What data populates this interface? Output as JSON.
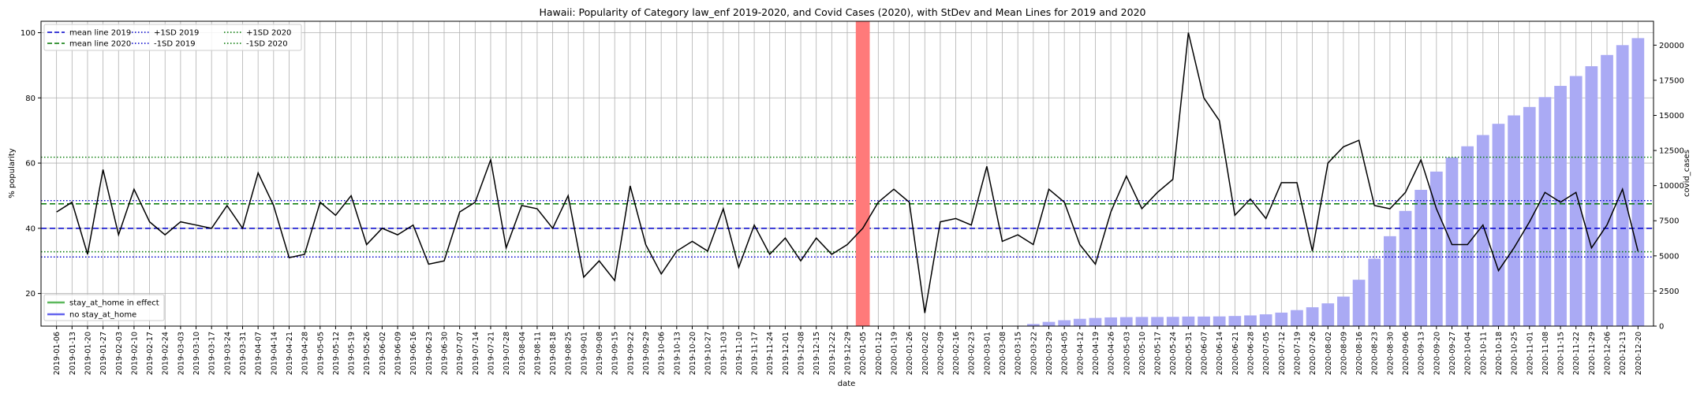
{
  "chart_data": {
    "type": "line",
    "title": "Hawaii: Popularity of Category law_enf 2019-2020, and Covid Cases (2020), with StDev and Mean Lines for 2019 and 2020",
    "xlabel": "date",
    "ylabel": "% popularity",
    "y2label": "covid_cases",
    "ylim": [
      10,
      103.5
    ],
    "y_ticks": [
      20,
      40,
      60,
      80,
      100
    ],
    "y2lim": [
      0,
      21700
    ],
    "y2_ticks": [
      0,
      2500,
      5000,
      7500,
      10000,
      12500,
      15000,
      17500,
      20000
    ],
    "grid": true,
    "dates": [
      "2019-01-06",
      "2019-01-13",
      "2019-01-20",
      "2019-01-27",
      "2019-02-03",
      "2019-02-10",
      "2019-02-17",
      "2019-02-24",
      "2019-03-03",
      "2019-03-10",
      "2019-03-17",
      "2019-03-24",
      "2019-03-31",
      "2019-04-07",
      "2019-04-14",
      "2019-04-21",
      "2019-04-28",
      "2019-05-05",
      "2019-05-12",
      "2019-05-19",
      "2019-05-26",
      "2019-06-02",
      "2019-06-09",
      "2019-06-16",
      "2019-06-23",
      "2019-06-30",
      "2019-07-07",
      "2019-07-14",
      "2019-07-21",
      "2019-07-28",
      "2019-08-04",
      "2019-08-11",
      "2019-08-18",
      "2019-08-25",
      "2019-09-01",
      "2019-09-08",
      "2019-09-15",
      "2019-09-22",
      "2019-09-29",
      "2019-10-06",
      "2019-10-13",
      "2019-10-20",
      "2019-10-27",
      "2019-11-03",
      "2019-11-10",
      "2019-11-17",
      "2019-11-24",
      "2019-12-01",
      "2019-12-08",
      "2019-12-15",
      "2019-12-22",
      "2019-12-29",
      "2020-01-05",
      "2020-01-12",
      "2020-01-19",
      "2020-01-26",
      "2020-02-02",
      "2020-02-09",
      "2020-02-16",
      "2020-02-23",
      "2020-03-01",
      "2020-03-08",
      "2020-03-15",
      "2020-03-22",
      "2020-03-29",
      "2020-04-05",
      "2020-04-12",
      "2020-04-19",
      "2020-04-26",
      "2020-05-03",
      "2020-05-10",
      "2020-05-17",
      "2020-05-24",
      "2020-05-31",
      "2020-06-07",
      "2020-06-14",
      "2020-06-21",
      "2020-06-28",
      "2020-07-05",
      "2020-07-12",
      "2020-07-19",
      "2020-07-26",
      "2020-08-02",
      "2020-08-09",
      "2020-08-16",
      "2020-08-23",
      "2020-08-30",
      "2020-09-06",
      "2020-09-13",
      "2020-09-20",
      "2020-09-27",
      "2020-10-04",
      "2020-10-11",
      "2020-10-18",
      "2020-10-25",
      "2020-11-01",
      "2020-11-08",
      "2020-11-15",
      "2020-11-22",
      "2020-11-29",
      "2020-12-06",
      "2020-12-13",
      "2020-12-20"
    ],
    "tick_labels": [
      "2019-01-06",
      "2019-01-13",
      "2019-01-20",
      "2019-01-27",
      "2019-02-03",
      "2019-02-10",
      "2019-02-17",
      "2019-02-24",
      "2019-03-03",
      "2019-03-10",
      "2019-03-17",
      "2019-03-24",
      "2019-03-31",
      "2019-04-07",
      "2019-04-14",
      "2019-04-21",
      "2019-04-28",
      "2019-05-05",
      "2019-05-12",
      "2019-05-19",
      "2019-05-26",
      "2019-06-02",
      "2019-06-09",
      "2019-06-16",
      "2019-06-23",
      "2019-06-30",
      "2019-07-07",
      "2019-07-14",
      "2019-07-21",
      "2019-07-28",
      "2019-08-04",
      "2019-08-11",
      "2019-08-18",
      "2019-08-25",
      "2019-09-01",
      "2019-09-08",
      "2019-09-15",
      "2019-09-22",
      "2019-09-29",
      "2019-10-06",
      "2019-10-13",
      "2019-10-20",
      "2019-10-27",
      "2019-11-03",
      "2019-11-10",
      "2019-11-17",
      "2019-11-24",
      "2019-12-01",
      "2019-12-08",
      "2019-12-15",
      "2019-12-22",
      "2019-12-29",
      "2020-01-05",
      "2020-01-12",
      "2020-01-19",
      "2020-01-26",
      "2020-02-02",
      "2020-02-09",
      "2020-02-16",
      "2020-02-23",
      "2020-03-01",
      "2020-03-08",
      "2020-03-15",
      "2020-03-22",
      "2020-03-29",
      "2020-04-05",
      "2020-04-12",
      "2020-04-19",
      "2020-04-26",
      "2020-05-03",
      "2020-05-10",
      "2020-05-17",
      "2020-05-24",
      "2020-05-31",
      "2020-06-07",
      "2020-06-14",
      "2020-06-21",
      "2020-06-28",
      "2020-07-05",
      "2020-07-12",
      "2020-07-19",
      "2020-07-26",
      "2020-08-02",
      "2020-08-09",
      "2020-08-16",
      "2020-08-23",
      "2020-08-30",
      "2020-09-06",
      "2020-09-13",
      "2020-09-20",
      "2020-09-27",
      "2020-10-04",
      "2020-10-11",
      "2020-10-18",
      "2020-10-25",
      "2020-11-01",
      "2020-11-08",
      "2020-11-15",
      "2020-11-22",
      "2020-11-29",
      "2020-12-06",
      "2020-12-13",
      "2020-12-20"
    ],
    "popularity": [
      45,
      48,
      32,
      58,
      38,
      52,
      42,
      38,
      42,
      41,
      40,
      47,
      40,
      57,
      47,
      31,
      32,
      48,
      44,
      50,
      35,
      40,
      38,
      41,
      29,
      30,
      45,
      48,
      61,
      34,
      47,
      46,
      40,
      50,
      25,
      30,
      24,
      53,
      35,
      26,
      33,
      36,
      33,
      46,
      28,
      41,
      32,
      37,
      30,
      37,
      32,
      35,
      40,
      48,
      52,
      48,
      14,
      42,
      43,
      41,
      59,
      36,
      38,
      35,
      52,
      48,
      35,
      29,
      45,
      56,
      46,
      51,
      55,
      100,
      80,
      73,
      44,
      49,
      43,
      54,
      54,
      33,
      60,
      65,
      67,
      47,
      46,
      51,
      61,
      46,
      35,
      35,
      41,
      27,
      34,
      42,
      51,
      48,
      51,
      34,
      41,
      52,
      33
    ],
    "covid_cases": [
      0,
      0,
      0,
      0,
      0,
      0,
      0,
      0,
      0,
      0,
      0,
      0,
      0,
      0,
      0,
      0,
      0,
      0,
      0,
      0,
      0,
      0,
      0,
      0,
      0,
      0,
      0,
      0,
      0,
      0,
      0,
      0,
      0,
      0,
      0,
      0,
      0,
      0,
      0,
      0,
      0,
      0,
      0,
      0,
      0,
      0,
      0,
      0,
      0,
      0,
      0,
      0,
      0,
      0,
      0,
      0,
      0,
      0,
      0,
      0,
      0,
      0,
      30,
      150,
      300,
      420,
      520,
      580,
      620,
      640,
      650,
      650,
      660,
      680,
      680,
      690,
      720,
      760,
      840,
      960,
      1140,
      1340,
      1620,
      2100,
      3300,
      4800,
      6400,
      8200,
      9700,
      11000,
      12000,
      12800,
      13600,
      14400,
      15000,
      15600,
      16300,
      17100,
      17800,
      18500,
      19300,
      20000,
      20500
    ],
    "stay_at_home_weeks": [],
    "red_marker_date": "2020-01-05",
    "lines": {
      "mean_2019": 40.0,
      "mean_2020": 47.5,
      "plus_1sd_2019": 48.5,
      "minus_1sd_2019": 31.2,
      "plus_1sd_2020": 61.8,
      "minus_1sd_2020": 32.8
    },
    "colors": {
      "popularity": "#000000",
      "mean_2019": "#0000cc",
      "mean_2020": "#007700",
      "sd_2019": "#0000cc",
      "sd_2020": "#007700",
      "bar_stay": "#98d098",
      "bar_no_stay": "#aaaaf4",
      "red_marker": "#ff7a7a"
    },
    "legend_top": {
      "placement": "upper-left",
      "entries": [
        {
          "label": "mean line 2019",
          "style": "dashed",
          "color": "#0000cc"
        },
        {
          "label": "mean line 2020",
          "style": "dashed",
          "color": "#007700"
        },
        {
          "label": "+1SD 2019",
          "style": "dotted",
          "color": "#0000cc"
        },
        {
          "label": "-1SD 2019",
          "style": "dotted",
          "color": "#0000cc"
        },
        {
          "label": "+1SD 2020",
          "style": "dotted",
          "color": "#007700"
        },
        {
          "label": "-1SD 2020",
          "style": "dotted",
          "color": "#007700"
        }
      ]
    },
    "legend_bottom": {
      "placement": "lower-left",
      "entries": [
        {
          "label": "stay_at_home in effect",
          "color": "#5cb85c"
        },
        {
          "label": "no stay_at_home",
          "color": "#6666ee"
        }
      ]
    }
  }
}
